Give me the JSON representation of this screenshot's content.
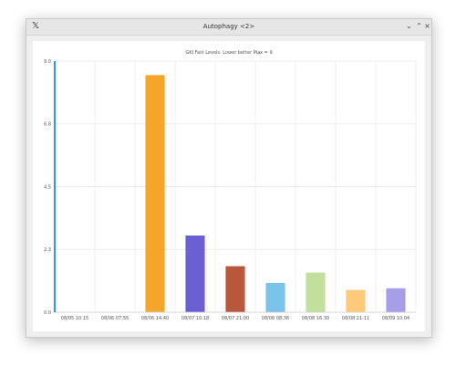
{
  "window": {
    "title": "Autophagy <2>",
    "app_icon": "x-app-icon",
    "minimize_glyph": "⌄",
    "maximize_glyph": "⌃",
    "close_glyph": "×"
  },
  "chart_data": {
    "type": "bar",
    "title": "GKI Fast Levels: Lower better Max = 9",
    "categories": [
      "08/05 10:15",
      "08/06 07:55",
      "08/06 14:40",
      "08/07 10:18",
      "08/07 21:00",
      "08/08 08:36",
      "08/08 16:30",
      "08/08 21:11",
      "08/09 10:04"
    ],
    "values": [
      0,
      0,
      8.5,
      2.75,
      1.65,
      1.05,
      1.42,
      0.8,
      0.86
    ],
    "colors": [
      "#3a9ad9",
      "#3a9ad9",
      "#f5a52a",
      "#6c5fd3",
      "#b9573c",
      "#7cc3ea",
      "#c3df9c",
      "#fdca7c",
      "#a79ee8"
    ],
    "yticks": [
      "0.0",
      "2.3",
      "4.5",
      "6.8",
      "9.0"
    ],
    "ytick_values": [
      0,
      2.25,
      4.5,
      6.75,
      9
    ],
    "ylim": [
      0,
      9
    ],
    "grid": true,
    "axis_color": "#3a9ad9",
    "xlabel": "",
    "ylabel": ""
  }
}
